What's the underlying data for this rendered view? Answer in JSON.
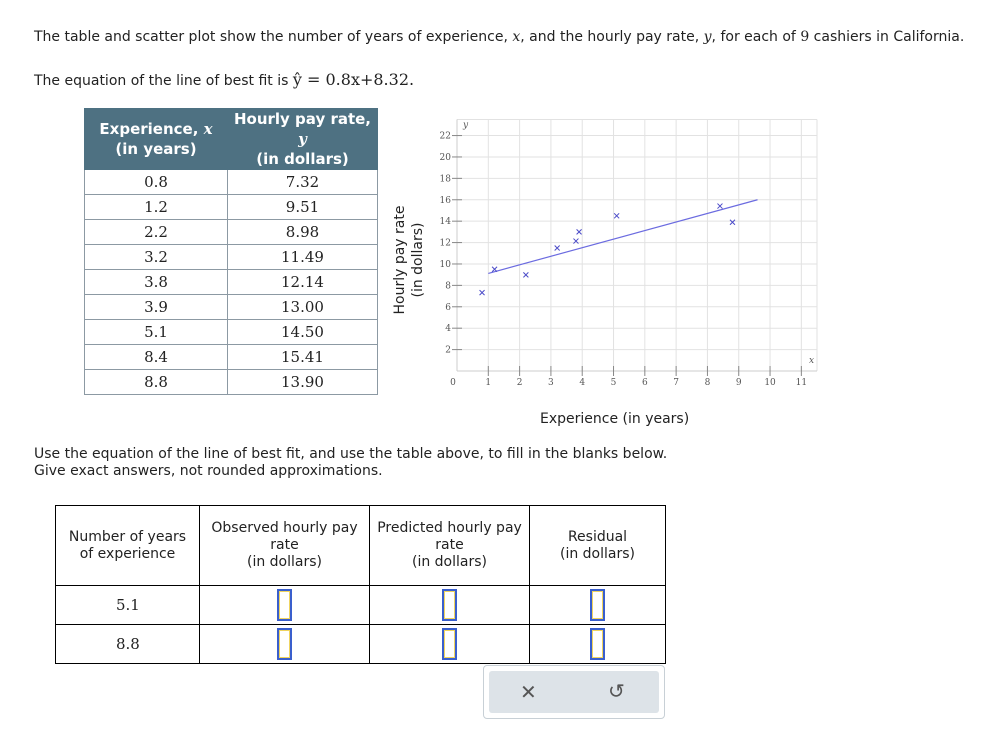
{
  "intro": [
    "The table and scatter plot show the number of years of experience, ",
    "x",
    ", and the hourly pay rate, ",
    "y",
    ", for each of ",
    "9",
    " cashiers in California."
  ],
  "equation": {
    "prefix": "The equation of the line of best fit is ",
    "expression": "ŷ = 0.8x+8.32."
  },
  "table": {
    "header": [
      [
        "Experience, ",
        "x",
        "(in years)"
      ],
      [
        "Hourly pay rate, ",
        "y",
        "(in dollars)"
      ]
    ],
    "rows": [
      [
        "0.8",
        "7.32"
      ],
      [
        "1.2",
        "9.51"
      ],
      [
        "2.2",
        "8.98"
      ],
      [
        "3.2",
        "11.49"
      ],
      [
        "3.8",
        "12.14"
      ],
      [
        "3.9",
        "13.00"
      ],
      [
        "5.1",
        "14.50"
      ],
      [
        "8.4",
        "15.41"
      ],
      [
        "8.8",
        "13.90"
      ]
    ]
  },
  "chart_data": {
    "type": "scatter",
    "x_label": "Experience (in years)",
    "y_label": [
      "Hourly pay rate",
      "(in dollars)"
    ],
    "x_axis_symbol": "x",
    "y_axis_symbol": "y",
    "origin_label": "0",
    "x": [
      0.8,
      1.2,
      2.2,
      3.2,
      3.8,
      3.9,
      5.1,
      8.4,
      8.8
    ],
    "values": [
      7.32,
      9.51,
      8.98,
      11.49,
      12.14,
      13.0,
      14.5,
      15.41,
      13.9
    ],
    "xlim": [
      0,
      11.5
    ],
    "ylim": [
      0,
      23.5
    ],
    "xticks": [
      1,
      2,
      3,
      4,
      5,
      6,
      7,
      8,
      9,
      10,
      11
    ],
    "yticks": [
      2,
      4,
      6,
      8,
      10,
      12,
      14,
      16,
      18,
      20,
      22
    ],
    "grid": true,
    "color": "#4b4bc8",
    "fit_line": {
      "slope": 0.8,
      "intercept": 8.32,
      "x_range": [
        1,
        9.6
      ],
      "color": "#6b6be0"
    }
  },
  "instructions": [
    "Use the equation of the line of best fit, and use the table above, to fill in the blanks below.",
    "Give exact answers, not rounded approximations."
  ],
  "answer_table": {
    "header": [
      [
        "Number of years",
        "of experience"
      ],
      [
        "Observed hourly pay",
        "rate",
        "(in dollars)"
      ],
      [
        "Predicted hourly pay",
        "rate",
        "(in dollars)"
      ],
      [
        "Residual",
        "(in dollars)"
      ]
    ],
    "rows": [
      "5.1",
      "8.8"
    ]
  }
}
